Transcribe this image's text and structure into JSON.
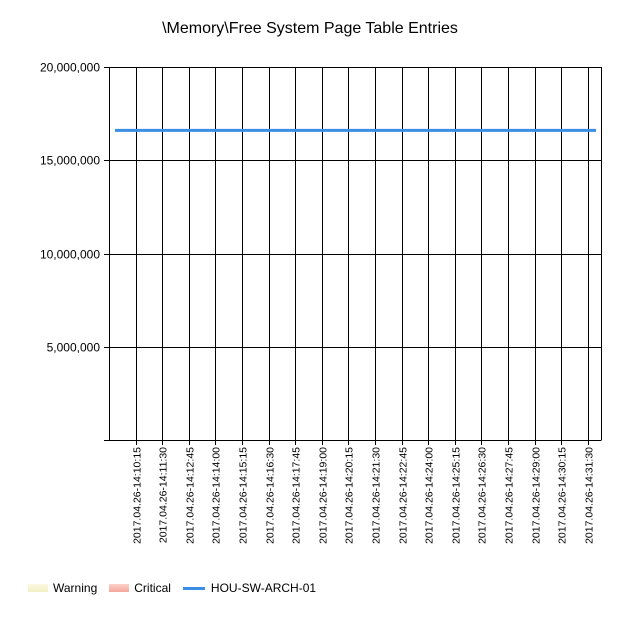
{
  "chart_data": {
    "type": "line",
    "title": "\\Memory\\Free System Page Table Entries",
    "xlabel": "",
    "ylabel": "",
    "ylim": [
      0,
      20000000
    ],
    "y_ticks": [
      0,
      5000000,
      10000000,
      15000000,
      20000000
    ],
    "y_tick_labels": [
      "",
      "5,000,000",
      "10,000,000",
      "15,000,000",
      "20,000,000"
    ],
    "categories": [
      "2017.04.26-14:10:15",
      "2017.04.26-14:11:30",
      "2017.04.26-14:12:45",
      "2017.04.26-14:14:00",
      "2017.04.26-14:15:15",
      "2017.04.26-14:16:30",
      "2017.04.26-14:17:45",
      "2017.04.26-14:19:00",
      "2017.04.26-14:20:15",
      "2017.04.26-14:21:30",
      "2017.04.26-14:22:45",
      "2017.04.26-14:24:00",
      "2017.04.26-14:25:15",
      "2017.04.26-14:26:30",
      "2017.04.26-14:27:45",
      "2017.04.26-14:29:00",
      "2017.04.26-14:30:15",
      "2017.04.26-14:31:30"
    ],
    "series": [
      {
        "name": "HOU-SW-ARCH-01",
        "color": "#3a8ee6",
        "values": [
          16600000,
          16600000,
          16600000,
          16600000,
          16600000,
          16600000,
          16600000,
          16600000,
          16600000,
          16600000,
          16600000,
          16600000,
          16600000,
          16600000,
          16600000,
          16600000,
          16600000,
          16600000
        ]
      }
    ],
    "grid": true,
    "legend_position": "bottom-left",
    "legend": [
      {
        "name": "Warning",
        "kind": "band",
        "color": "#f4f0c4"
      },
      {
        "name": "Critical",
        "kind": "band",
        "color": "#f4a79a"
      },
      {
        "name": "HOU-SW-ARCH-01",
        "kind": "line",
        "color": "#3a8ee6"
      }
    ]
  }
}
